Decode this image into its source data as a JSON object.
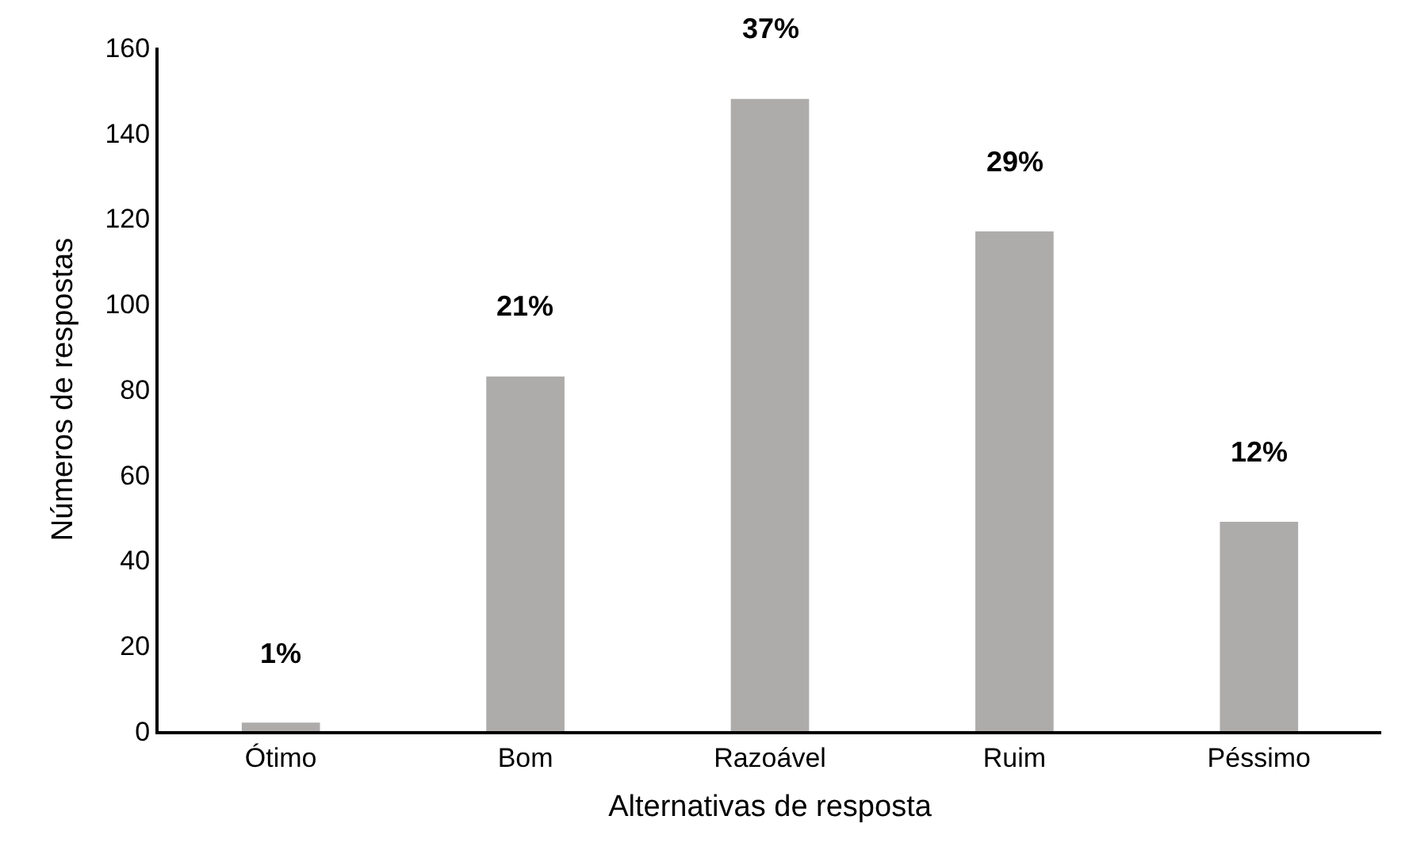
{
  "chart_data": {
    "type": "bar",
    "xlabel": "Alternativas de resposta",
    "ylabel": "Números de respostas",
    "categories": [
      "Ótimo",
      "Bom",
      "Razoável",
      "Ruim",
      "Péssimo"
    ],
    "values": [
      2,
      83,
      148,
      117,
      49
    ],
    "annotations": [
      {
        "text": "1%",
        "x": "Ótimo",
        "y": 2
      },
      {
        "text": "21%",
        "x": "Bom",
        "y": 83
      },
      {
        "text": "37%",
        "x": "Razoável",
        "y": 148
      },
      {
        "text": "29%",
        "x": "Ruim",
        "y": 117
      },
      {
        "text": "12%",
        "x": "Péssimo",
        "y": 49
      }
    ],
    "color": "#aeabab",
    "ylim": [
      0,
      160
    ],
    "yticks": [
      0,
      20,
      40,
      60,
      80,
      100,
      120,
      140,
      160
    ],
    "grid": false,
    "legend": false
  }
}
